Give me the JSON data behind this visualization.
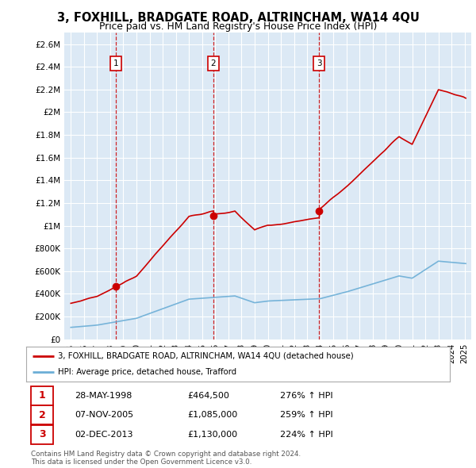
{
  "title": "3, FOXHILL, BRADGATE ROAD, ALTRINCHAM, WA14 4QU",
  "subtitle": "Price paid vs. HM Land Registry's House Price Index (HPI)",
  "sale_labels": [
    "1",
    "2",
    "3"
  ],
  "sale_pct": [
    "276%",
    "259%",
    "224%"
  ],
  "sale_date_str": [
    "28-MAY-1998",
    "07-NOV-2005",
    "02-DEC-2013"
  ],
  "sale_price_str": [
    "£464,500",
    "£1,085,000",
    "£1,130,000"
  ],
  "legend_line1": "3, FOXHILL, BRADGATE ROAD, ALTRINCHAM, WA14 4QU (detached house)",
  "legend_line2": "HPI: Average price, detached house, Trafford",
  "footnote": "Contains HM Land Registry data © Crown copyright and database right 2024.\nThis data is licensed under the Open Government Licence v3.0.",
  "hpi_color": "#6baed6",
  "price_color": "#cc0000",
  "marker_color": "#cc0000",
  "bg_color": "#ffffff",
  "plot_bg_color": "#dce9f5",
  "grid_color": "#ffffff",
  "ylim": [
    0,
    2700000
  ],
  "yticks": [
    0,
    200000,
    400000,
    600000,
    800000,
    1000000,
    1200000,
    1400000,
    1600000,
    1800000,
    2000000,
    2200000,
    2400000,
    2600000
  ],
  "ytick_labels": [
    "£0",
    "£200K",
    "£400K",
    "£600K",
    "£800K",
    "£1M",
    "£1.2M",
    "£1.4M",
    "£1.6M",
    "£1.8M",
    "£2M",
    "£2.2M",
    "£2.4M",
    "£2.6M"
  ],
  "xlim_start": 1994.5,
  "xlim_end": 2025.5,
  "sale_years": [
    1998.41,
    2005.84,
    2013.92
  ],
  "sale_prices": [
    464500,
    1085000,
    1130000
  ]
}
